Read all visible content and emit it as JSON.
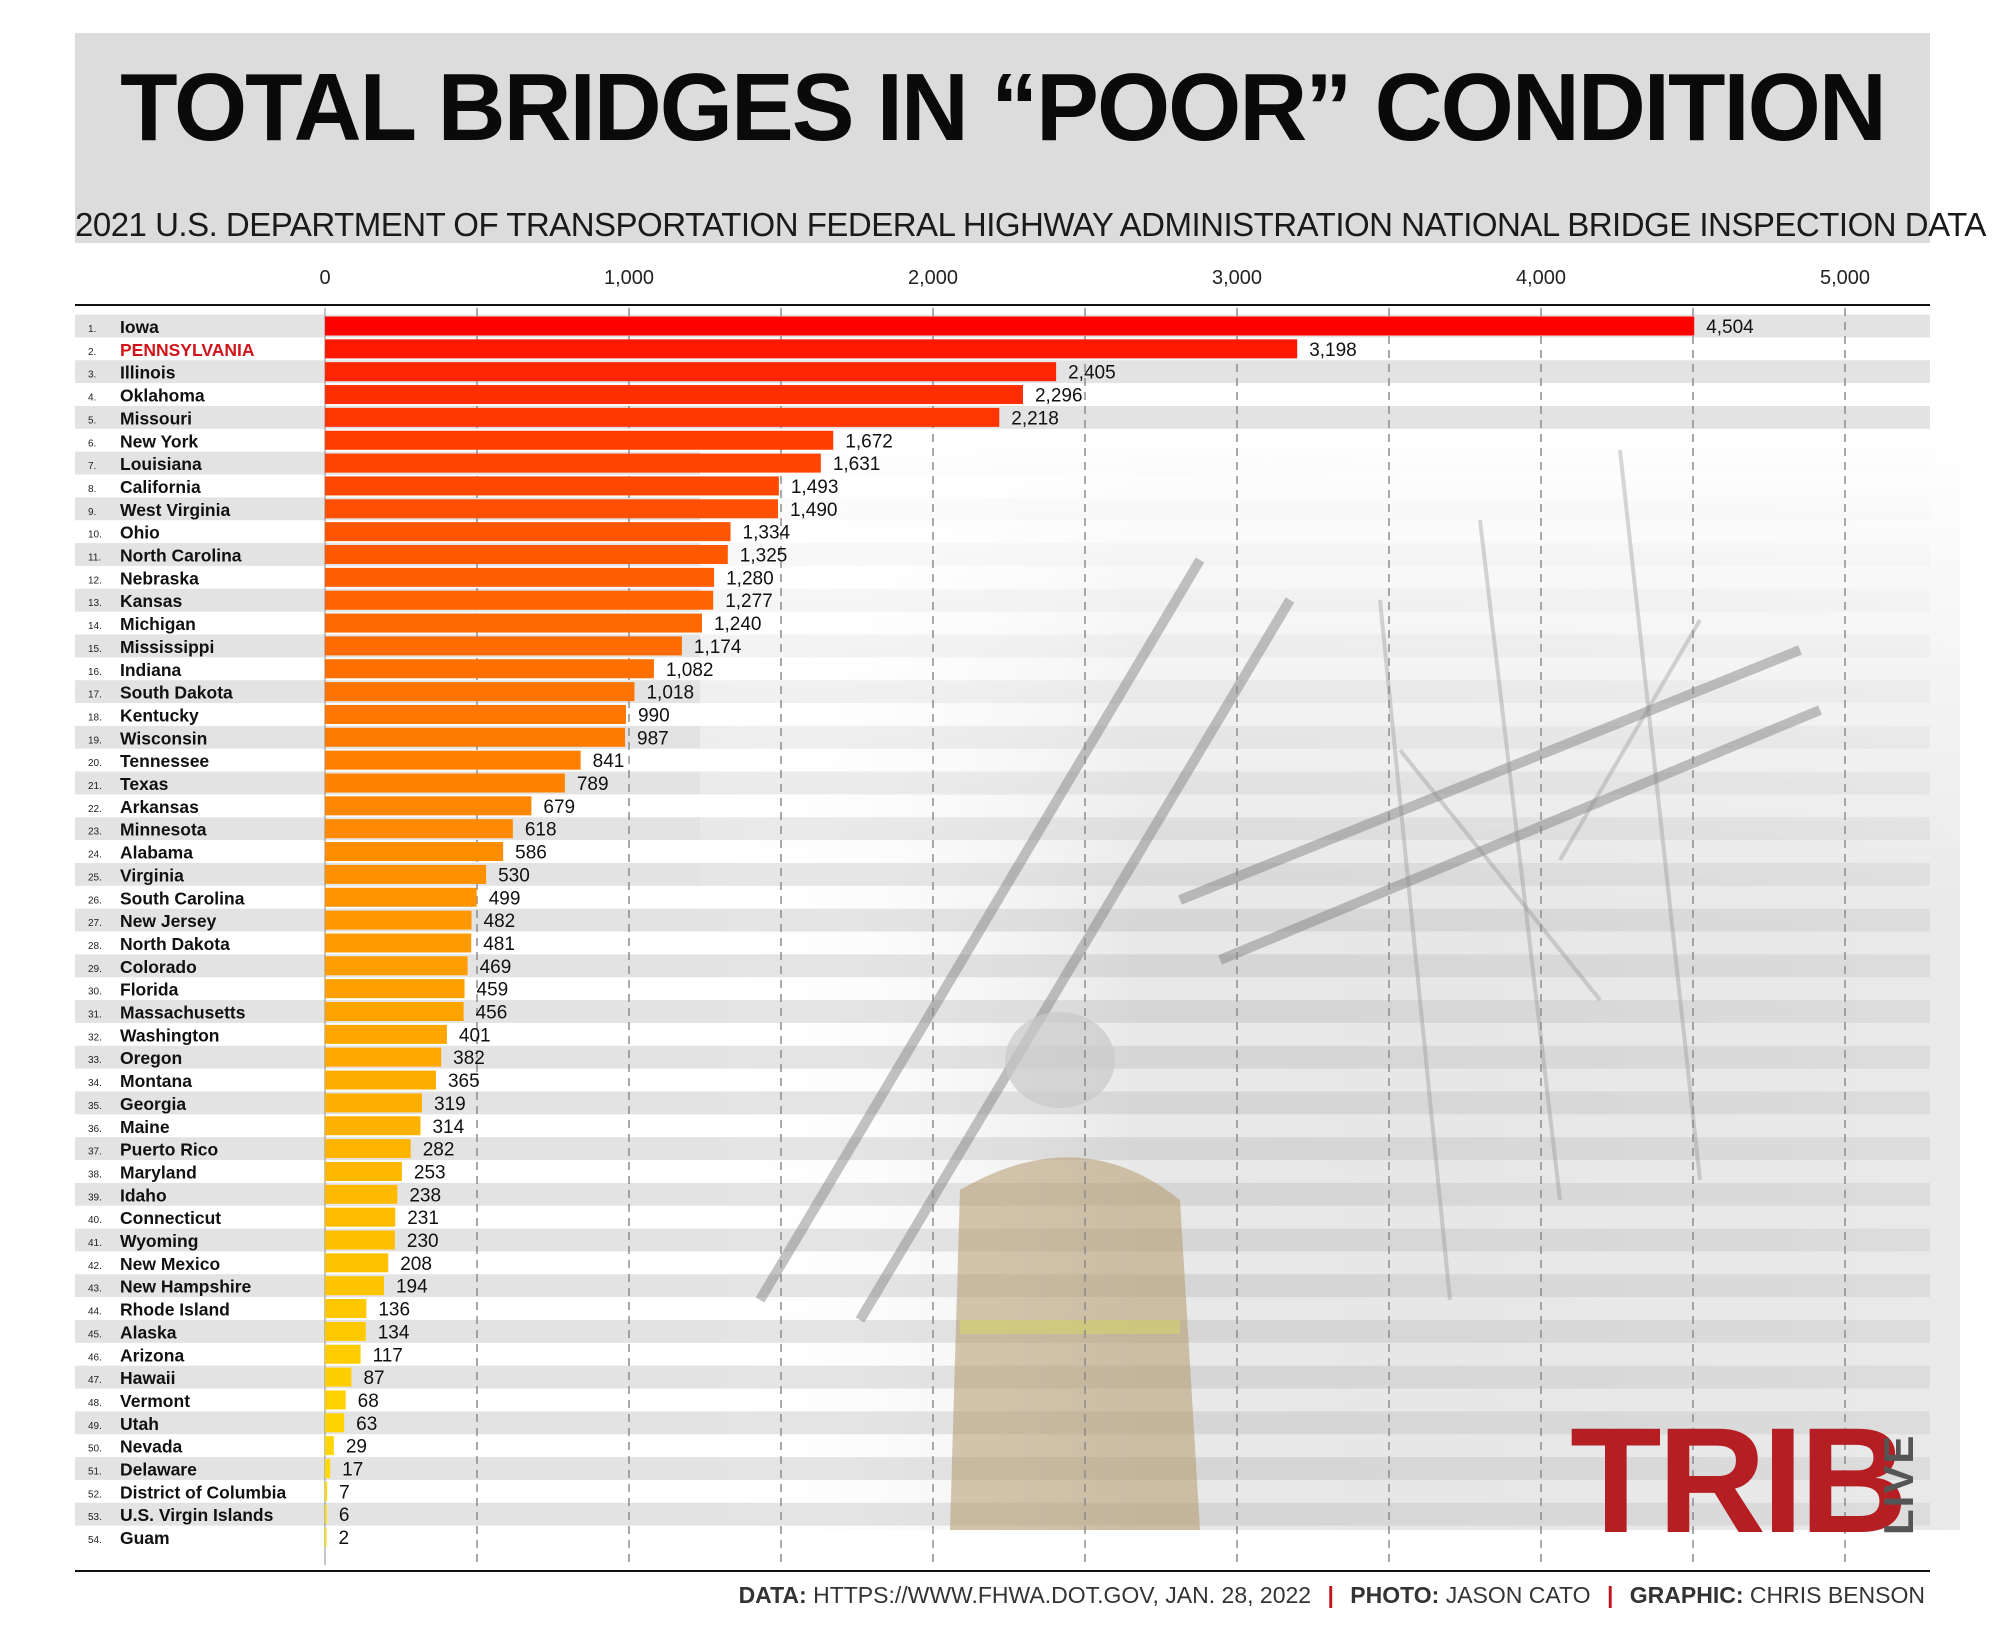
{
  "header": {
    "title": "TOTAL BRIDGES IN “POOR” CONDITION",
    "subtitle": "2021 U.S. DEPARTMENT OF TRANSPORTATION FEDERAL HIGHWAY ADMINISTRATION NATIONAL BRIDGE INSPECTION DATA"
  },
  "credits": {
    "data_label": "DATA:",
    "data_value": "HTTPS://WWW.FHWA.DOT.GOV, JAN. 28, 2022",
    "photo_label": "PHOTO:",
    "photo_value": "JASON CATO",
    "graphic_label": "GRAPHIC:",
    "graphic_value": "CHRIS BENSON",
    "separator": "|"
  },
  "logo": {
    "main": "TRIB",
    "side": "LIVE"
  },
  "colors": {
    "highlight": "#d0141a",
    "bar_start": "#ff0000",
    "bar_end": "#ffdf00",
    "logo_red": "#b51f24",
    "stripe": "#dadada"
  },
  "photo": {
    "description_icon": "firefighter-collapsed-bridge-photo"
  },
  "chart_data": {
    "type": "bar",
    "orientation": "horizontal",
    "xlim": [
      0,
      5000
    ],
    "xticks": [
      0,
      1000,
      2000,
      3000,
      4000,
      5000
    ],
    "xtick_labels": [
      "0",
      "1,000",
      "2,000",
      "3,000",
      "4,000",
      "5,000"
    ],
    "grid": true,
    "highlight": "PENNSYLVANIA",
    "categories": [
      "Iowa",
      "PENNSYLVANIA",
      "Illinois",
      "Oklahoma",
      "Missouri",
      "New York",
      "Louisiana",
      "California",
      "West Virginia",
      "Ohio",
      "North Carolina",
      "Nebraska",
      "Kansas",
      "Michigan",
      "Mississippi",
      "Indiana",
      "South Dakota",
      "Kentucky",
      "Wisconsin",
      "Tennessee",
      "Texas",
      "Arkansas",
      "Minnesota",
      "Alabama",
      "Virginia",
      "South Carolina",
      "New Jersey",
      "North Dakota",
      "Colorado",
      "Florida",
      "Massachusetts",
      "Washington",
      "Oregon",
      "Montana",
      "Georgia",
      "Maine",
      "Puerto Rico",
      "Maryland",
      "Idaho",
      "Connecticut",
      "Wyoming",
      "New Mexico",
      "New Hampshire",
      "Rhode Island",
      "Alaska",
      "Arizona",
      "Hawaii",
      "Vermont",
      "Utah",
      "Nevada",
      "Delaware",
      "District of Columbia",
      "U.S. Virgin Islands",
      "Guam"
    ],
    "ranks": [
      "1.",
      "2.",
      "3.",
      "4.",
      "5.",
      "6.",
      "7.",
      "8.",
      "9.",
      "10.",
      "11.",
      "12.",
      "13.",
      "14.",
      "15.",
      "16.",
      "17.",
      "18.",
      "19.",
      "20.",
      "21.",
      "22.",
      "23.",
      "24.",
      "25.",
      "26.",
      "27.",
      "28.",
      "29.",
      "30.",
      "31.",
      "32.",
      "33.",
      "34.",
      "35.",
      "36.",
      "37.",
      "38.",
      "39.",
      "40.",
      "41.",
      "42.",
      "43.",
      "44.",
      "45.",
      "46.",
      "47.",
      "48.",
      "49.",
      "50.",
      "51.",
      "52.",
      "53.",
      "54."
    ],
    "values": [
      4504,
      3198,
      2405,
      2296,
      2218,
      1672,
      1631,
      1493,
      1490,
      1334,
      1325,
      1280,
      1277,
      1240,
      1174,
      1082,
      1018,
      990,
      987,
      841,
      789,
      679,
      618,
      586,
      530,
      499,
      482,
      481,
      469,
      459,
      456,
      401,
      382,
      365,
      319,
      314,
      282,
      253,
      238,
      231,
      230,
      208,
      194,
      136,
      134,
      117,
      87,
      68,
      63,
      29,
      17,
      7,
      6,
      2
    ],
    "value_labels": [
      "4,504",
      "3,198",
      "2,405",
      "2,296",
      "2,218",
      "1,672",
      "1,631",
      "1,493",
      "1,490",
      "1,334",
      "1,325",
      "1,280",
      "1,277",
      "1,240",
      "1,174",
      "1,082",
      "1,018",
      "990",
      "987",
      "841",
      "789",
      "679",
      "618",
      "586",
      "530",
      "499",
      "482",
      "481",
      "469",
      "459",
      "456",
      "401",
      "382",
      "365",
      "319",
      "314",
      "282",
      "253",
      "238",
      "231",
      "230",
      "208",
      "194",
      "136",
      "134",
      "117",
      "87",
      "68",
      "63",
      "29",
      "17",
      "7",
      "6",
      "2"
    ]
  }
}
